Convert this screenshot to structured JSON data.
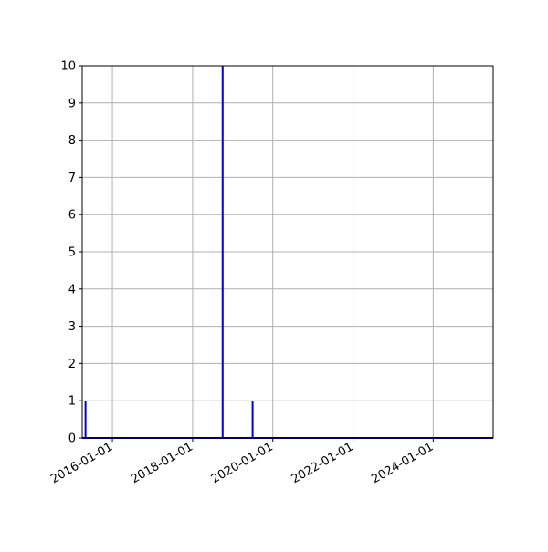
{
  "chart_data": {
    "type": "line",
    "title": "",
    "xlabel": "",
    "ylabel": "",
    "x_axis_type": "date",
    "xlim": [
      "2015-04-01",
      "2025-06-30"
    ],
    "ylim": [
      0,
      10
    ],
    "grid": true,
    "y_ticks": [
      0,
      1,
      2,
      3,
      4,
      5,
      6,
      7,
      8,
      9,
      10
    ],
    "x_ticks": [
      "2016-01-01",
      "2018-01-01",
      "2020-01-01",
      "2022-01-01",
      "2024-01-01"
    ],
    "series": [
      {
        "color": "#0000cc",
        "points": [
          {
            "x": "2015-04-01",
            "y": 0
          },
          {
            "x": "2015-05-01",
            "y": 0
          },
          {
            "x": "2015-05-01",
            "y": 1
          },
          {
            "x": "2015-05-01",
            "y": 0
          },
          {
            "x": "2018-10-01",
            "y": 0
          },
          {
            "x": "2018-10-01",
            "y": 10
          },
          {
            "x": "2018-10-01",
            "y": 0
          },
          {
            "x": "2019-07-01",
            "y": 0
          },
          {
            "x": "2019-07-01",
            "y": 1
          },
          {
            "x": "2019-07-01",
            "y": 0
          },
          {
            "x": "2025-06-30",
            "y": 0
          }
        ]
      }
    ]
  }
}
